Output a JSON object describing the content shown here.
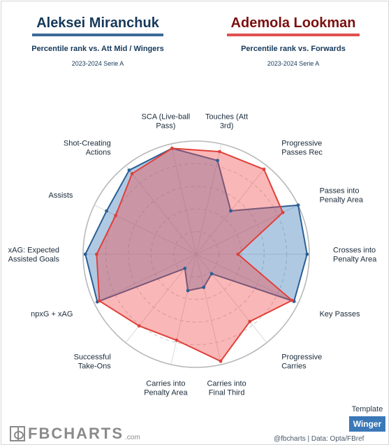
{
  "header": {
    "player1": {
      "name": "Aleksei Miranchuk",
      "subtitle": "Percentile rank vs. Att Mid / Wingers",
      "season": "2023-2024 Serie A"
    },
    "player2": {
      "name": "Ademola Lookman",
      "subtitle": "Percentile rank vs. Forwards",
      "season": "2023-2024 Serie A"
    }
  },
  "colors": {
    "player1_fill": "#3a78b8",
    "player1_line": "#2a5f94",
    "player2_fill": "#f24c4c",
    "player2_line": "#e0403a"
  },
  "chart_data": {
    "type": "radar",
    "title": "",
    "categories": [
      "SCA (Live-ball Pass)",
      "Touches (Att 3rd)",
      "Progressive Passes Rec",
      "Passes into Penalty Area",
      "Crosses into Penalty Area",
      "Key Passes",
      "Progressive Carries",
      "Carries into Final Third",
      "Carries into Penalty Area",
      "Successful Take-Ons",
      "npxG + xAG",
      "xAG: Expected Assisted Goals",
      "Assists",
      "Shot-Creating Actions"
    ],
    "category_labels": [
      [
        "SCA (Live-ball",
        "Pass)"
      ],
      [
        "Touches (Att",
        "3rd)"
      ],
      [
        "Progressive",
        "Passes Rec"
      ],
      [
        "Passes into",
        "Penalty Area"
      ],
      [
        "Crosses into",
        "Penalty Area"
      ],
      [
        "Key Passes"
      ],
      [
        "Progressive",
        "Carries"
      ],
      [
        "Carries into",
        "Final Third"
      ],
      [
        "Carries into",
        "Penalty Area"
      ],
      [
        "Successful",
        "Take-Ons"
      ],
      [
        "npxG + xAG"
      ],
      [
        "xAG: Expected",
        "Assisted Goals"
      ],
      [
        "Assists"
      ],
      [
        "Shot-Creating",
        "Actions"
      ]
    ],
    "range": [
      0,
      100
    ],
    "series": [
      {
        "name": "Aleksei Miranchuk",
        "values": [
          96,
          85,
          49,
          100,
          98,
          96,
          22,
          30,
          33,
          16,
          97,
          98,
          88,
          95
        ]
      },
      {
        "name": "Ademola Lookman",
        "values": [
          96,
          93,
          96,
          85,
          37,
          94,
          76,
          97,
          78,
          81,
          95,
          88,
          79,
          91
        ]
      }
    ]
  },
  "template": {
    "label": "Template",
    "value": "Winger"
  },
  "branding": {
    "logo_text": "FBCHARTS",
    "logo_suffix": ".com",
    "credit": "@fbcharts | Data: Opta/FBref"
  }
}
